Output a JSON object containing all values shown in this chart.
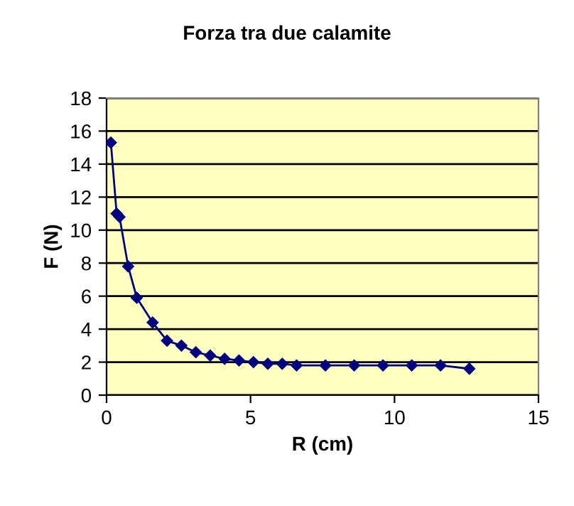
{
  "chart_data": {
    "type": "line",
    "title": "Forza tra due calamite",
    "xlabel": "R (cm)",
    "ylabel": "F (N)",
    "x": [
      0.15,
      0.35,
      0.45,
      0.75,
      1.05,
      1.6,
      2.1,
      2.6,
      3.1,
      3.6,
      4.1,
      4.6,
      5.1,
      5.6,
      6.1,
      6.6,
      7.6,
      8.6,
      9.6,
      10.6,
      11.6,
      12.6
    ],
    "series": [
      {
        "color": "#000080",
        "values": [
          15.3,
          11.0,
          10.8,
          7.8,
          5.9,
          4.4,
          3.3,
          3.0,
          2.6,
          2.4,
          2.2,
          2.1,
          2.0,
          1.9,
          1.9,
          1.8,
          1.8,
          1.8,
          1.8,
          1.8,
          1.8,
          1.6
        ]
      }
    ],
    "xlim": [
      0,
      15
    ],
    "xticks": [
      0,
      5,
      10,
      15
    ],
    "ylim": [
      0,
      18
    ],
    "yticks": [
      0,
      2,
      4,
      6,
      8,
      10,
      12,
      14,
      16,
      18
    ],
    "grid": "y",
    "marker": "diamond",
    "line_style": "solid"
  }
}
